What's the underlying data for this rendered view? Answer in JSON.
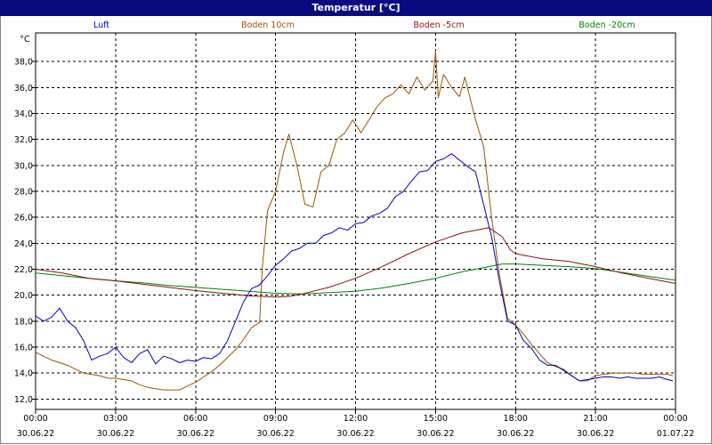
{
  "window": {
    "title": "Temperatur [°C]"
  },
  "chart_data": {
    "type": "line",
    "title": "Temperatur [°C]",
    "y_unit": "°C",
    "ylim": [
      11.2,
      40.2
    ],
    "y_ticks": [
      "12,0",
      "14,0",
      "16,0",
      "18,0",
      "20,0",
      "22,0",
      "24,0",
      "26,0",
      "28,0",
      "30,0",
      "32,0",
      "34,0",
      "36,0",
      "38,0"
    ],
    "y_tick_values": [
      12,
      14,
      16,
      18,
      20,
      22,
      24,
      26,
      28,
      30,
      32,
      34,
      36,
      38
    ],
    "xlim": [
      0,
      24
    ],
    "x_tick_values": [
      0,
      3,
      6,
      9,
      12,
      15,
      18,
      21,
      24
    ],
    "x_ticks_time": [
      "00:00",
      "03:00",
      "06:00",
      "09:00",
      "12:00",
      "15:00",
      "18:00",
      "21:00",
      "00:00"
    ],
    "x_ticks_date": [
      "30.06.22",
      "30.06.22",
      "30.06.22",
      "30.06.22",
      "30.06.22",
      "30.06.22",
      "30.06.22",
      "30.06.22",
      "01.07.22"
    ],
    "grid": true,
    "legend_position": "top",
    "series": [
      {
        "name": "Luft",
        "color": "#0000cc",
        "points": [
          [
            0,
            18.4
          ],
          [
            0.3,
            18.0
          ],
          [
            0.6,
            18.3
          ],
          [
            0.9,
            19.0
          ],
          [
            1.2,
            18.0
          ],
          [
            1.5,
            17.5
          ],
          [
            1.8,
            16.5
          ],
          [
            2.1,
            15.0
          ],
          [
            2.4,
            15.3
          ],
          [
            2.7,
            15.5
          ],
          [
            3.0,
            16.0
          ],
          [
            3.3,
            15.2
          ],
          [
            3.6,
            14.8
          ],
          [
            3.9,
            15.5
          ],
          [
            4.2,
            15.8
          ],
          [
            4.5,
            14.7
          ],
          [
            4.8,
            15.3
          ],
          [
            5.1,
            15.1
          ],
          [
            5.4,
            14.8
          ],
          [
            5.7,
            15.0
          ],
          [
            6.0,
            14.9
          ],
          [
            6.3,
            15.2
          ],
          [
            6.6,
            15.1
          ],
          [
            6.9,
            15.5
          ],
          [
            7.2,
            16.5
          ],
          [
            7.5,
            18.0
          ],
          [
            7.8,
            19.5
          ],
          [
            8.1,
            20.5
          ],
          [
            8.4,
            20.8
          ],
          [
            8.7,
            21.5
          ],
          [
            9.0,
            22.3
          ],
          [
            9.3,
            22.8
          ],
          [
            9.6,
            23.4
          ],
          [
            9.9,
            23.6
          ],
          [
            10.2,
            24.0
          ],
          [
            10.5,
            24.0
          ],
          [
            10.8,
            24.6
          ],
          [
            11.1,
            24.8
          ],
          [
            11.4,
            25.2
          ],
          [
            11.7,
            25.0
          ],
          [
            12.0,
            25.5
          ],
          [
            12.3,
            25.6
          ],
          [
            12.6,
            26.1
          ],
          [
            12.9,
            26.3
          ],
          [
            13.2,
            26.7
          ],
          [
            13.5,
            27.6
          ],
          [
            13.8,
            28.0
          ],
          [
            14.1,
            28.8
          ],
          [
            14.4,
            29.5
          ],
          [
            14.7,
            29.6
          ],
          [
            15.0,
            30.3
          ],
          [
            15.3,
            30.5
          ],
          [
            15.6,
            30.9
          ],
          [
            15.9,
            30.4
          ],
          [
            16.2,
            29.9
          ],
          [
            16.5,
            29.5
          ],
          [
            16.8,
            27.0
          ],
          [
            17.1,
            24.5
          ],
          [
            17.4,
            21.0
          ],
          [
            17.7,
            18.0
          ],
          [
            18.0,
            17.7
          ],
          [
            18.3,
            16.5
          ],
          [
            18.6,
            15.9
          ],
          [
            18.9,
            15.0
          ],
          [
            19.2,
            14.6
          ],
          [
            19.5,
            14.6
          ],
          [
            19.8,
            14.2
          ],
          [
            20.1,
            13.8
          ],
          [
            20.4,
            13.4
          ],
          [
            20.7,
            13.5
          ],
          [
            21.0,
            13.6
          ],
          [
            21.3,
            13.7
          ],
          [
            21.6,
            13.7
          ],
          [
            21.9,
            13.6
          ],
          [
            22.2,
            13.7
          ],
          [
            22.5,
            13.6
          ],
          [
            22.8,
            13.6
          ],
          [
            23.1,
            13.6
          ],
          [
            23.4,
            13.7
          ],
          [
            23.7,
            13.5
          ],
          [
            23.9,
            13.4
          ]
        ]
      },
      {
        "name": "Boden 10cm",
        "color": "#995500",
        "points": [
          [
            0,
            15.6
          ],
          [
            0.3,
            15.3
          ],
          [
            0.6,
            15.0
          ],
          [
            0.9,
            14.8
          ],
          [
            1.2,
            14.6
          ],
          [
            1.5,
            14.3
          ],
          [
            1.8,
            14.0
          ],
          [
            2.1,
            13.9
          ],
          [
            2.4,
            13.8
          ],
          [
            2.7,
            13.6
          ],
          [
            3.0,
            13.6
          ],
          [
            3.3,
            13.5
          ],
          [
            3.6,
            13.4
          ],
          [
            3.9,
            13.1
          ],
          [
            4.2,
            12.9
          ],
          [
            4.5,
            12.8
          ],
          [
            4.8,
            12.7
          ],
          [
            5.1,
            12.7
          ],
          [
            5.4,
            12.7
          ],
          [
            5.7,
            13.0
          ],
          [
            6.0,
            13.3
          ],
          [
            6.3,
            13.7
          ],
          [
            6.6,
            14.1
          ],
          [
            6.9,
            14.6
          ],
          [
            7.2,
            15.2
          ],
          [
            7.5,
            15.8
          ],
          [
            7.8,
            16.6
          ],
          [
            8.1,
            17.5
          ],
          [
            8.4,
            17.9
          ],
          [
            8.5,
            22.0
          ],
          [
            8.7,
            26.5
          ],
          [
            9.0,
            28.0
          ],
          [
            9.3,
            31.0
          ],
          [
            9.5,
            32.4
          ],
          [
            9.8,
            30.0
          ],
          [
            10.1,
            27.0
          ],
          [
            10.4,
            26.8
          ],
          [
            10.7,
            29.5
          ],
          [
            11.0,
            30.0
          ],
          [
            11.3,
            32.0
          ],
          [
            11.6,
            32.5
          ],
          [
            11.9,
            33.5
          ],
          [
            12.2,
            32.5
          ],
          [
            12.5,
            33.5
          ],
          [
            12.8,
            34.5
          ],
          [
            13.1,
            35.2
          ],
          [
            13.4,
            35.5
          ],
          [
            13.7,
            36.2
          ],
          [
            14.0,
            35.5
          ],
          [
            14.3,
            36.8
          ],
          [
            14.6,
            35.8
          ],
          [
            14.9,
            36.5
          ],
          [
            15.0,
            38.8
          ],
          [
            15.1,
            35.2
          ],
          [
            15.3,
            37.0
          ],
          [
            15.6,
            36.0
          ],
          [
            15.9,
            35.3
          ],
          [
            16.1,
            36.8
          ],
          [
            16.5,
            33.5
          ],
          [
            16.8,
            31.5
          ],
          [
            17.1,
            26.0
          ],
          [
            17.4,
            21.5
          ],
          [
            17.7,
            18.2
          ],
          [
            18.0,
            17.7
          ],
          [
            18.3,
            17.0
          ],
          [
            18.6,
            16.2
          ],
          [
            18.9,
            15.5
          ],
          [
            19.2,
            14.8
          ],
          [
            19.5,
            14.5
          ],
          [
            19.8,
            14.3
          ],
          [
            20.1,
            13.8
          ],
          [
            20.4,
            13.4
          ],
          [
            20.7,
            13.4
          ],
          [
            21.0,
            13.8
          ],
          [
            21.3,
            13.9
          ],
          [
            21.6,
            14.0
          ],
          [
            21.9,
            14.0
          ],
          [
            22.2,
            14.0
          ],
          [
            22.5,
            14.0
          ],
          [
            22.8,
            13.9
          ],
          [
            23.1,
            13.9
          ],
          [
            23.4,
            13.9
          ],
          [
            23.7,
            13.9
          ],
          [
            23.9,
            13.8
          ]
        ]
      },
      {
        "name": "Boden -5cm",
        "color": "#8b1010",
        "points": [
          [
            0,
            22.0
          ],
          [
            1,
            21.7
          ],
          [
            2,
            21.3
          ],
          [
            3,
            21.1
          ],
          [
            4,
            20.85
          ],
          [
            5,
            20.6
          ],
          [
            6,
            20.35
          ],
          [
            7,
            20.15
          ],
          [
            8,
            19.95
          ],
          [
            9,
            19.85
          ],
          [
            9.5,
            19.9
          ],
          [
            10,
            20.1
          ],
          [
            11,
            20.6
          ],
          [
            12,
            21.3
          ],
          [
            13,
            22.2
          ],
          [
            14,
            23.2
          ],
          [
            15,
            24.1
          ],
          [
            16,
            24.8
          ],
          [
            16.5,
            25.0
          ],
          [
            17,
            25.2
          ],
          [
            17.5,
            24.5
          ],
          [
            17.8,
            23.5
          ],
          [
            18,
            23.2
          ],
          [
            19,
            22.8
          ],
          [
            20,
            22.6
          ],
          [
            21,
            22.2
          ],
          [
            22,
            21.7
          ],
          [
            23,
            21.3
          ],
          [
            24,
            20.9
          ]
        ]
      },
      {
        "name": "Boden -20cm",
        "color": "#008000",
        "points": [
          [
            0,
            21.7
          ],
          [
            1,
            21.5
          ],
          [
            2,
            21.3
          ],
          [
            3,
            21.1
          ],
          [
            4,
            20.95
          ],
          [
            5,
            20.75
          ],
          [
            6,
            20.6
          ],
          [
            7,
            20.45
          ],
          [
            8,
            20.3
          ],
          [
            9,
            20.15
          ],
          [
            10,
            20.1
          ],
          [
            11,
            20.2
          ],
          [
            12,
            20.3
          ],
          [
            13,
            20.55
          ],
          [
            14,
            20.9
          ],
          [
            15,
            21.3
          ],
          [
            16,
            21.8
          ],
          [
            17,
            22.2
          ],
          [
            17.5,
            22.4
          ],
          [
            18,
            22.4
          ],
          [
            19,
            22.3
          ],
          [
            20,
            22.2
          ],
          [
            21,
            22.05
          ],
          [
            22,
            21.75
          ],
          [
            23,
            21.45
          ],
          [
            24,
            21.15
          ]
        ]
      }
    ]
  }
}
